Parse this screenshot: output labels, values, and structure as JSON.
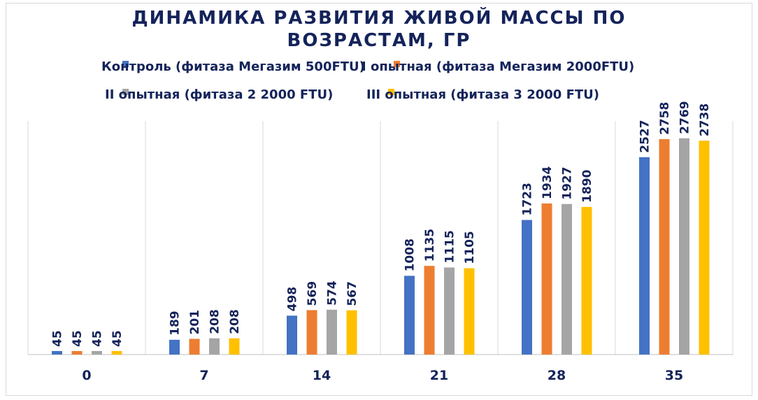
{
  "chart_data": {
    "type": "bar",
    "title_lines": [
      "ДИНАМИКА РАЗВИТИЯ ЖИВОЙ МАССЫ ПО",
      "ВОЗРАСТАМ, ГР"
    ],
    "categories": [
      "0",
      "7",
      "14",
      "21",
      "28",
      "35"
    ],
    "series": [
      {
        "name": "Контроль (фитаза Мегазим 500FTU)",
        "color": "#4472c4",
        "values": [
          45,
          189,
          498,
          1008,
          1723,
          2527
        ]
      },
      {
        "name": "I опытная (фитаза Мегазим 2000FTU)",
        "color": "#ed7d31",
        "values": [
          45,
          201,
          569,
          1135,
          1934,
          2758
        ]
      },
      {
        "name": "II опытная (фитаза 2 2000 FTU)",
        "color": "#a5a5a5",
        "values": [
          45,
          208,
          574,
          1115,
          1927,
          2769
        ]
      },
      {
        "name": "III опытная (фитаза 3  2000 FTU)",
        "color": "#ffc000",
        "values": [
          45,
          208,
          567,
          1105,
          1890,
          2738
        ]
      }
    ],
    "xlabel": "",
    "ylabel": "",
    "ylim": [
      0,
      3000
    ],
    "grid": "vertical category separators",
    "legend_position": "top"
  }
}
